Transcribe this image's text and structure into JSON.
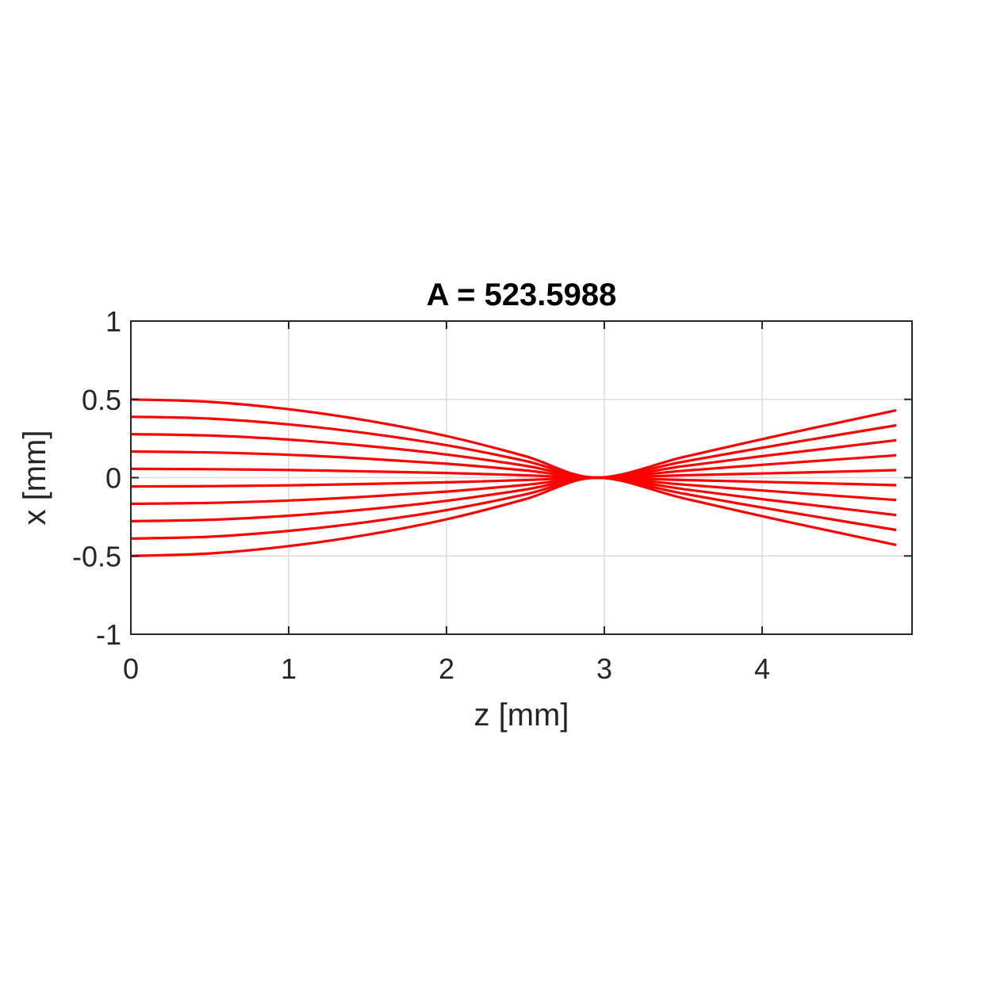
{
  "chart_data": {
    "type": "line",
    "title": "A = 523.5988",
    "xlabel": "z [mm]",
    "ylabel": "x [mm]",
    "xlim": [
      0,
      4.95
    ],
    "ylim": [
      -1,
      1
    ],
    "xticks": [
      0,
      1,
      2,
      3,
      4
    ],
    "xtick_labels": [
      "0",
      "1",
      "2",
      "3",
      "4"
    ],
    "yticks": [
      -1,
      -0.5,
      0,
      0.5,
      1
    ],
    "ytick_labels": [
      "-1",
      "-0.5",
      "0",
      "0.5",
      "1"
    ],
    "grid": true,
    "legend": "none",
    "colors": {
      "series": "#ff0000",
      "axes": "#262626",
      "grid": "#dcdcdc"
    },
    "x": [
      0,
      0.5,
      1,
      1.5,
      2,
      2.5,
      2.95,
      3.5,
      4,
      4.5,
      4.85
    ],
    "series": [
      {
        "values": [
          0.5,
          0.484,
          0.437,
          0.364,
          0.266,
          0.137,
          0,
          0.131,
          0.246,
          0.355,
          0.43
        ]
      },
      {
        "values": [
          0.389,
          0.377,
          0.34,
          0.283,
          0.207,
          0.107,
          0,
          0.102,
          0.191,
          0.276,
          0.334
        ]
      },
      {
        "values": [
          0.278,
          0.269,
          0.243,
          0.202,
          0.148,
          0.076,
          0,
          0.073,
          0.137,
          0.197,
          0.239
        ]
      },
      {
        "values": [
          0.167,
          0.161,
          0.146,
          0.121,
          0.089,
          0.046,
          0,
          0.044,
          0.082,
          0.118,
          0.143
        ]
      },
      {
        "values": [
          0.056,
          0.054,
          0.049,
          0.04,
          0.03,
          0.015,
          0,
          0.015,
          0.027,
          0.039,
          0.048
        ]
      },
      {
        "values": [
          -0.056,
          -0.054,
          -0.049,
          -0.04,
          -0.03,
          -0.015,
          0,
          -0.015,
          -0.027,
          -0.039,
          -0.048
        ]
      },
      {
        "values": [
          -0.167,
          -0.161,
          -0.146,
          -0.121,
          -0.089,
          -0.046,
          0,
          -0.044,
          -0.082,
          -0.118,
          -0.143
        ]
      },
      {
        "values": [
          -0.278,
          -0.269,
          -0.243,
          -0.202,
          -0.148,
          -0.076,
          0,
          -0.073,
          -0.137,
          -0.197,
          -0.239
        ]
      },
      {
        "values": [
          -0.389,
          -0.377,
          -0.34,
          -0.283,
          -0.207,
          -0.107,
          0,
          -0.102,
          -0.191,
          -0.276,
          -0.334
        ]
      },
      {
        "values": [
          -0.5,
          -0.484,
          -0.437,
          -0.364,
          -0.266,
          -0.137,
          0,
          -0.131,
          -0.246,
          -0.355,
          -0.43
        ]
      }
    ]
  }
}
